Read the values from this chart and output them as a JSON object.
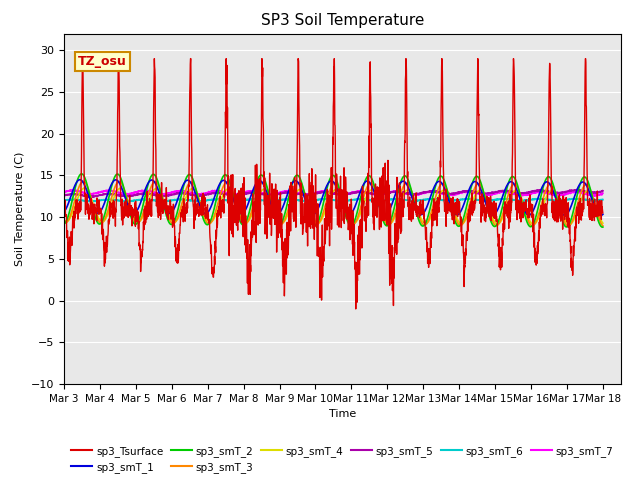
{
  "title": "SP3 Soil Temperature",
  "xlabel": "Time",
  "ylabel": "Soil Temperature (C)",
  "ylim": [
    -10,
    32
  ],
  "xlim_days": [
    0,
    15.5
  ],
  "bg_color": "#e8e8e8",
  "tz_label": "TZ_osu",
  "tz_bg": "#ffffcc",
  "tz_border": "#cc8800",
  "series_colors": {
    "sp3_Tsurface": "#dd0000",
    "sp3_smT_1": "#0000dd",
    "sp3_smT_2": "#00cc00",
    "sp3_smT_3": "#ff8800",
    "sp3_smT_4": "#dddd00",
    "sp3_smT_5": "#aa00aa",
    "sp3_smT_6": "#00cccc",
    "sp3_smT_7": "#ff00ff"
  },
  "tick_labels": [
    "Mar 3",
    "Mar 4",
    "Mar 5",
    "Mar 6",
    "Mar 7",
    "Mar 8",
    "Mar 9",
    "Mar 10",
    "Mar 11",
    "Mar 12",
    "Mar 13",
    "Mar 14",
    "Mar 15",
    "Mar 16",
    "Mar 17",
    "Mar 18"
  ],
  "tick_positions": [
    0,
    1,
    2,
    3,
    4,
    5,
    6,
    7,
    8,
    9,
    10,
    11,
    12,
    13,
    14,
    15
  ],
  "yticks": [
    -10,
    -5,
    0,
    5,
    10,
    15,
    20,
    25,
    30
  ]
}
